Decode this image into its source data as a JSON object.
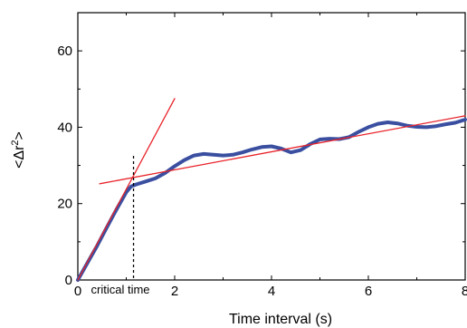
{
  "chart_data": {
    "type": "line",
    "xlabel": "Time interval (s)",
    "ylabel_main": "<Δr",
    "ylabel_sup": "2",
    "ylabel_end": ">",
    "xlim": [
      0,
      8
    ],
    "ylim": [
      0,
      70
    ],
    "x_ticks": [
      0,
      2,
      4,
      6,
      8
    ],
    "y_ticks": [
      0,
      20,
      40,
      60
    ],
    "x_tick_labels": [
      "0",
      "2",
      "4",
      "6",
      "8"
    ],
    "y_tick_labels": [
      "0",
      "20",
      "40",
      "60"
    ],
    "grid": false,
    "series": [
      {
        "color": "#3a4fa0",
        "x": [
          0,
          0.2,
          0.4,
          0.6,
          0.8,
          1.0,
          1.1,
          1.2,
          1.4,
          1.6,
          1.8,
          2.0,
          2.2,
          2.4,
          2.6,
          2.8,
          3.0,
          3.2,
          3.4,
          3.6,
          3.8,
          4.0,
          4.2,
          4.4,
          4.6,
          4.8,
          5.0,
          5.2,
          5.4,
          5.6,
          5.8,
          6.0,
          6.2,
          6.4,
          6.6,
          6.8,
          7.0,
          7.2,
          7.4,
          7.6,
          7.8,
          8.0
        ],
        "y": [
          0,
          4.5,
          9.0,
          13.8,
          18.5,
          23.0,
          24.5,
          25.0,
          25.8,
          26.6,
          28.0,
          29.8,
          31.4,
          32.6,
          33.0,
          32.8,
          32.6,
          32.8,
          33.4,
          34.2,
          34.8,
          35.0,
          34.4,
          33.4,
          34.0,
          35.6,
          36.8,
          37.0,
          36.9,
          37.4,
          38.8,
          40.0,
          40.9,
          41.3,
          41.0,
          40.4,
          40.1,
          40.0,
          40.3,
          40.8,
          41.2,
          42.0
        ]
      },
      {
        "color": "#e8232a",
        "x": [
          0,
          2.0
        ],
        "y": [
          0,
          47.5
        ]
      },
      {
        "color": "#e8232a",
        "x": [
          0.45,
          8.0
        ],
        "y": [
          25.2,
          43.0
        ]
      }
    ],
    "annotation": {
      "text": "critical time",
      "x": 1.15
    }
  }
}
